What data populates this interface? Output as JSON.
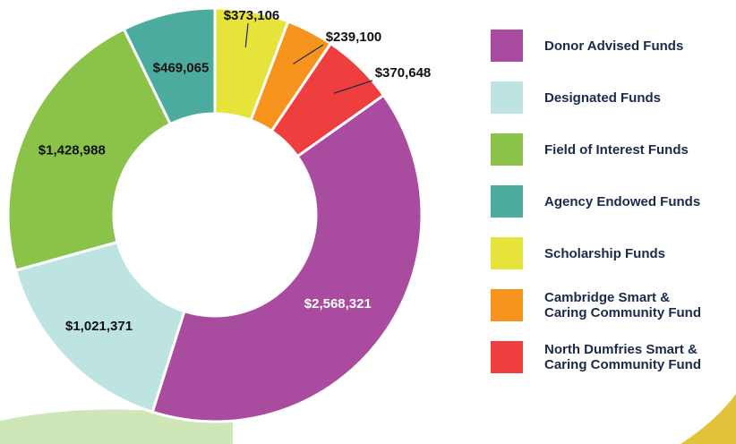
{
  "chart_data": {
    "type": "pie",
    "categories": [
      "Donor Advised Funds",
      "Designated Funds",
      "Field of Interest Funds",
      "Agency Endowed Funds",
      "Scholarship Funds",
      "Cambridge Smart & Caring Community Fund",
      "North Dumfries Smart & Caring Community Fund"
    ],
    "values": [
      2568321,
      1021371,
      1428988,
      469065,
      373106,
      239100,
      370648
    ],
    "value_labels": [
      "$2,568,321",
      "$1,021,371",
      "$1,428,988",
      "$469,065",
      "$373,106",
      "$239,100",
      "$370,648"
    ],
    "colors": [
      "#a94c9f",
      "#bde4e0",
      "#8bc34a",
      "#4aab9e",
      "#e6e43a",
      "#f7941d",
      "#ef3e3e"
    ],
    "donut": true,
    "legend": "right"
  }
}
